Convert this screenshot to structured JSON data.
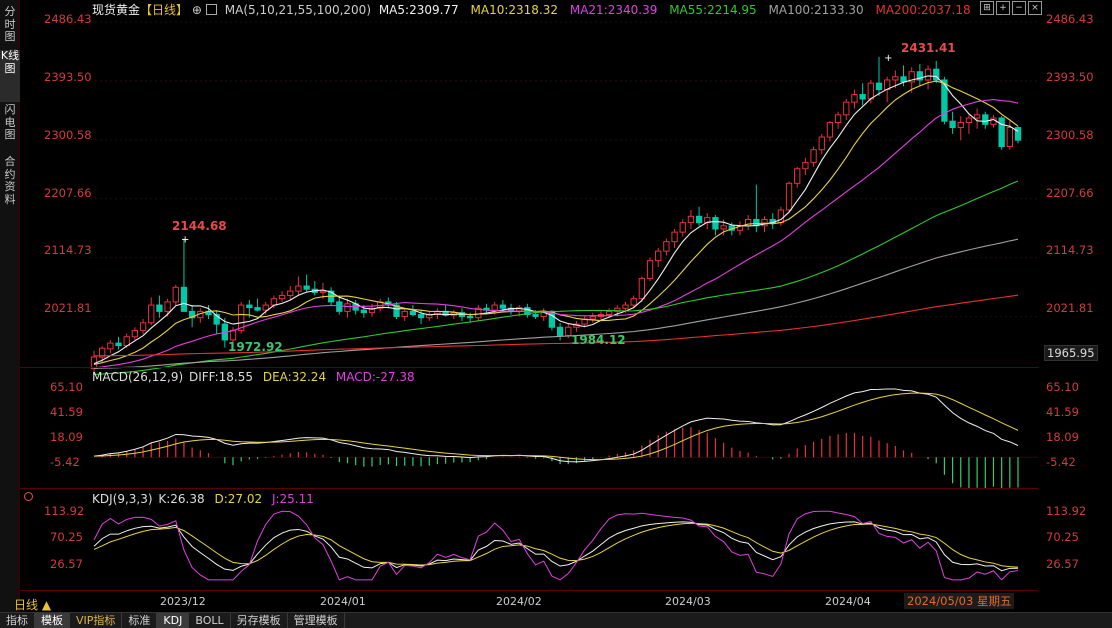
{
  "sidebar": {
    "tabs": [
      "分时图",
      "K线图",
      "闪电图",
      "合约资料"
    ],
    "active": 1
  },
  "header": {
    "symbol": "现货黄金",
    "period_tag": "【日线】",
    "icon": "plus-circle-icon",
    "ma_label": "MA(5,10,21,55,100,200)",
    "ma5": "MA5:2309.77",
    "ma10": "MA10:2318.32",
    "ma21": "MA21:2340.39",
    "ma55": "MA55:2214.95",
    "ma100": "MA100:2133.30",
    "ma200": "MA200:2037.18"
  },
  "toolbar_icons": [
    "grid-icon",
    "zoom-in-icon",
    "zoom-out-icon",
    "close-icon"
  ],
  "colors": {
    "up": "#e8313a",
    "down": "#00c9a7",
    "ma5": "#f0f0f0",
    "ma10": "#e8d440",
    "ma21": "#e040e0",
    "ma55": "#30c830",
    "ma100": "#a0a0a0",
    "ma200": "#e83030",
    "dif": "#f0f0f0",
    "dea": "#e8d440",
    "macd": "#e040e0",
    "k": "#f0f0f0",
    "d": "#e8d440",
    "j": "#e040e0",
    "axis": "#d23b3b"
  },
  "price_axis": {
    "labels": [
      "2486.43",
      "2393.50",
      "2300.58",
      "2207.66",
      "2114.73",
      "2021.81"
    ],
    "bottom_label": "1965.95",
    "min": 1965.95,
    "max": 2486.43
  },
  "annotations": {
    "high1": "2144.68",
    "low1": "1972.92",
    "low2": "1984.12",
    "high2": "2431.41"
  },
  "macd": {
    "title": "MACD(26,12,9)",
    "dif": "DIFF:18.55",
    "dea": "DEA:32.24",
    "macd": "MACD:-27.38",
    "axis_labels": [
      "65.10",
      "41.59",
      "18.09",
      "-5.42"
    ],
    "min": -5.42,
    "max": 65.1
  },
  "kdj": {
    "title": "KDJ(9,3,3)",
    "k": "K:26.38",
    "d": "D:27.02",
    "j": "J:25.11",
    "axis_labels": [
      "113.92",
      "70.25",
      "26.57"
    ],
    "min": 26.57,
    "max": 113.92,
    "icon": "dot-icon"
  },
  "x_axis": {
    "labels": [
      "2023/12",
      "2024/01",
      "2024/02",
      "2024/03",
      "2024/04"
    ]
  },
  "current_date": "2024/05/03 星期五",
  "period_selector": "日线 ▲",
  "bottom_tabs": [
    "指标",
    "模板",
    "VIP指标",
    "标准",
    "KDJ",
    "BOLL",
    "另存模板",
    "管理模板"
  ],
  "bottom_active": [
    1,
    4
  ],
  "chart_data": {
    "type": "candlestick",
    "dates_start": "2023-11-13",
    "ohlc": [
      [
        1940,
        1968,
        1932,
        1958
      ],
      [
        1958,
        1975,
        1950,
        1972
      ],
      [
        1971,
        1985,
        1964,
        1980
      ],
      [
        1980,
        1990,
        1970,
        1976
      ],
      [
        1976,
        1995,
        1972,
        1990
      ],
      [
        1990,
        2005,
        1985,
        2000
      ],
      [
        2000,
        2018,
        1994,
        2012
      ],
      [
        2012,
        2052,
        2008,
        2040
      ],
      [
        2040,
        2055,
        2020,
        2030
      ],
      [
        2030,
        2050,
        2022,
        2045
      ],
      [
        2045,
        2072,
        2040,
        2068
      ],
      [
        2068,
        2144.68,
        2030,
        2030
      ],
      [
        2030,
        2040,
        2005,
        2020
      ],
      [
        2020,
        2035,
        2012,
        2030
      ],
      [
        2030,
        2040,
        2018,
        2025
      ],
      [
        2025,
        2030,
        1995,
        2010
      ],
      [
        2010,
        2020,
        1972.92,
        1985
      ],
      [
        1985,
        2005,
        1980,
        2000
      ],
      [
        2000,
        2045,
        1995,
        2040
      ],
      [
        2040,
        2048,
        2020,
        2036
      ],
      [
        2036,
        2050,
        2030,
        2032
      ],
      [
        2032,
        2045,
        2025,
        2040
      ],
      [
        2040,
        2055,
        2035,
        2050
      ],
      [
        2050,
        2062,
        2045,
        2055
      ],
      [
        2055,
        2070,
        2048,
        2062
      ],
      [
        2062,
        2085,
        2055,
        2070
      ],
      [
        2070,
        2088,
        2060,
        2065
      ],
      [
        2065,
        2078,
        2055,
        2060
      ],
      [
        2060,
        2075,
        2050,
        2062
      ],
      [
        2062,
        2068,
        2040,
        2045
      ],
      [
        2045,
        2055,
        2025,
        2030
      ],
      [
        2030,
        2050,
        2020,
        2042
      ],
      [
        2042,
        2048,
        2025,
        2032
      ],
      [
        2032,
        2040,
        2020,
        2028
      ],
      [
        2028,
        2042,
        2022,
        2035
      ],
      [
        2035,
        2050,
        2030,
        2045
      ],
      [
        2045,
        2052,
        2035,
        2040
      ],
      [
        2040,
        2045,
        2018,
        2022
      ],
      [
        2022,
        2035,
        2015,
        2030
      ],
      [
        2030,
        2040,
        2022,
        2025
      ],
      [
        2025,
        2032,
        2010,
        2020
      ],
      [
        2020,
        2030,
        2015,
        2025
      ],
      [
        2025,
        2035,
        2018,
        2030
      ],
      [
        2030,
        2040,
        2022,
        2024
      ],
      [
        2024,
        2032,
        2018,
        2028
      ],
      [
        2028,
        2035,
        2015,
        2022
      ],
      [
        2022,
        2028,
        2012,
        2020
      ],
      [
        2020,
        2040,
        2015,
        2035
      ],
      [
        2035,
        2042,
        2028,
        2032
      ],
      [
        2032,
        2045,
        2025,
        2040
      ],
      [
        2040,
        2048,
        2028,
        2035
      ],
      [
        2035,
        2042,
        2025,
        2030
      ],
      [
        2030,
        2040,
        2022,
        2036
      ],
      [
        2036,
        2042,
        2020,
        2025
      ],
      [
        2025,
        2032,
        2018,
        2022
      ],
      [
        2022,
        2035,
        2015,
        2030
      ],
      [
        2030,
        2032,
        2000,
        2005
      ],
      [
        2005,
        2012,
        1984.12,
        1992
      ],
      [
        1992,
        2010,
        1988,
        2005
      ],
      [
        2005,
        2015,
        1998,
        2010
      ],
      [
        2010,
        2022,
        2005,
        2018
      ],
      [
        2018,
        2028,
        2012,
        2022
      ],
      [
        2022,
        2030,
        2015,
        2025
      ],
      [
        2025,
        2035,
        2020,
        2030
      ],
      [
        2030,
        2040,
        2022,
        2035
      ],
      [
        2035,
        2045,
        2028,
        2040
      ],
      [
        2040,
        2055,
        2035,
        2050
      ],
      [
        2050,
        2085,
        2045,
        2082
      ],
      [
        2082,
        2115,
        2078,
        2110
      ],
      [
        2110,
        2130,
        2100,
        2125
      ],
      [
        2125,
        2145,
        2118,
        2140
      ],
      [
        2140,
        2160,
        2130,
        2155
      ],
      [
        2155,
        2175,
        2148,
        2170
      ],
      [
        2170,
        2190,
        2160,
        2180
      ],
      [
        2180,
        2195,
        2165,
        2170
      ],
      [
        2170,
        2185,
        2160,
        2178
      ],
      [
        2178,
        2182,
        2150,
        2160
      ],
      [
        2160,
        2175,
        2150,
        2165
      ],
      [
        2165,
        2170,
        2150,
        2158
      ],
      [
        2158,
        2172,
        2150,
        2165
      ],
      [
        2165,
        2182,
        2158,
        2175
      ],
      [
        2175,
        2230,
        2155,
        2165
      ],
      [
        2165,
        2180,
        2155,
        2175
      ],
      [
        2175,
        2185,
        2160,
        2170
      ],
      [
        2170,
        2195,
        2165,
        2190
      ],
      [
        2190,
        2235,
        2185,
        2232
      ],
      [
        2232,
        2258,
        2225,
        2255
      ],
      [
        2255,
        2272,
        2245,
        2265
      ],
      [
        2265,
        2290,
        2258,
        2285
      ],
      [
        2285,
        2310,
        2278,
        2305
      ],
      [
        2305,
        2330,
        2298,
        2328
      ],
      [
        2328,
        2345,
        2318,
        2340
      ],
      [
        2340,
        2365,
        2332,
        2360
      ],
      [
        2360,
        2380,
        2350,
        2372
      ],
      [
        2372,
        2390,
        2355,
        2365
      ],
      [
        2365,
        2395,
        2358,
        2390
      ],
      [
        2390,
        2431.41,
        2370,
        2380
      ],
      [
        2380,
        2400,
        2360,
        2395
      ],
      [
        2395,
        2410,
        2382,
        2400
      ],
      [
        2400,
        2418,
        2385,
        2392
      ],
      [
        2392,
        2415,
        2375,
        2408
      ],
      [
        2408,
        2420,
        2385,
        2395
      ],
      [
        2395,
        2418,
        2380,
        2412
      ],
      [
        2412,
        2425,
        2390,
        2395
      ],
      [
        2395,
        2400,
        2325,
        2330
      ],
      [
        2330,
        2345,
        2310,
        2320
      ],
      [
        2320,
        2338,
        2300,
        2328
      ],
      [
        2328,
        2340,
        2310,
        2335
      ],
      [
        2335,
        2350,
        2318,
        2340
      ],
      [
        2340,
        2345,
        2318,
        2325
      ],
      [
        2325,
        2340,
        2320,
        2335
      ],
      [
        2335,
        2338,
        2285,
        2290
      ],
      [
        2290,
        2330,
        2285,
        2320
      ],
      [
        2320,
        2322,
        2295,
        2300
      ]
    ]
  }
}
